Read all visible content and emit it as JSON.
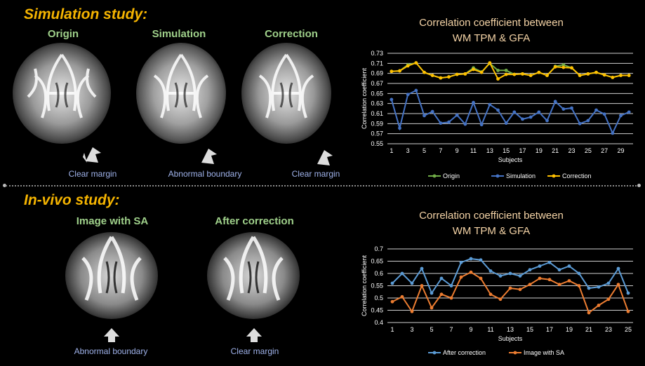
{
  "simulation": {
    "title": "Simulation study:",
    "labels": [
      "Origin",
      "Simulation",
      "Correction"
    ],
    "notes": [
      "Clear margin",
      "Abnormal boundary",
      "Clear margin"
    ]
  },
  "invivo": {
    "title": "In-vivo study:",
    "labels": [
      "Image with SA",
      "After correction"
    ],
    "notes": [
      "Abnormal boundary",
      "Clear margin"
    ]
  },
  "chart_data": [
    {
      "type": "line",
      "title": "Correlation coefficient between\nWM TPM & GFA",
      "title_lines": [
        "Correlation coefficient between",
        "WM TPM & GFA"
      ],
      "xlabel": "Subjects",
      "ylabel": "Correlation coefficient",
      "ylim": [
        0.55,
        0.73
      ],
      "yticks": [
        "0.55",
        "0.57",
        "0.59",
        "0.61",
        "0.63",
        "0.65",
        "0.67",
        "0.69",
        "0.71",
        "0.73"
      ],
      "xticks": [
        "1",
        "3",
        "5",
        "7",
        "9",
        "11",
        "13",
        "15",
        "17",
        "19",
        "21",
        "23",
        "25",
        "27",
        "29"
      ],
      "x": [
        1,
        2,
        3,
        4,
        5,
        6,
        7,
        8,
        9,
        10,
        11,
        12,
        13,
        14,
        15,
        16,
        17,
        18,
        19,
        20,
        21,
        22,
        23,
        24,
        25,
        26,
        27,
        28,
        29,
        30
      ],
      "legend": "bottom",
      "grid": true,
      "series": [
        {
          "name": "Origin",
          "color": "#70ad47",
          "values": [
            0.694,
            0.695,
            0.707,
            0.711,
            0.692,
            0.686,
            0.681,
            0.683,
            0.688,
            0.689,
            0.701,
            0.693,
            0.71,
            0.696,
            0.696,
            0.688,
            0.689,
            0.686,
            0.692,
            0.686,
            0.704,
            0.707,
            0.701,
            0.686,
            0.689,
            0.692,
            0.687,
            0.682,
            0.686,
            0.686
          ]
        },
        {
          "name": "Simulation",
          "color": "#4472c4",
          "values": [
            0.638,
            0.581,
            0.648,
            0.656,
            0.606,
            0.614,
            0.591,
            0.593,
            0.607,
            0.589,
            0.632,
            0.588,
            0.628,
            0.617,
            0.591,
            0.613,
            0.599,
            0.603,
            0.613,
            0.596,
            0.634,
            0.619,
            0.621,
            0.59,
            0.596,
            0.617,
            0.609,
            0.571,
            0.606,
            0.613
          ]
        },
        {
          "name": "Correction",
          "color": "#ffc000",
          "values": [
            0.694,
            0.695,
            0.705,
            0.711,
            0.692,
            0.686,
            0.681,
            0.683,
            0.688,
            0.689,
            0.698,
            0.692,
            0.711,
            0.679,
            0.688,
            0.688,
            0.689,
            0.686,
            0.692,
            0.686,
            0.703,
            0.702,
            0.701,
            0.686,
            0.689,
            0.692,
            0.687,
            0.682,
            0.686,
            0.686
          ]
        }
      ]
    },
    {
      "type": "line",
      "title": "Correlation coefficient between\nWM TPM & GFA",
      "title_lines": [
        "Correlation coefficient between",
        "WM TPM & GFA"
      ],
      "xlabel": "Subjects",
      "ylabel": "Correlation coefficient",
      "ylim": [
        0.4,
        0.7
      ],
      "yticks": [
        "0.4",
        "0.45",
        "0.5",
        "0.55",
        "0.6",
        "0.65",
        "0.7"
      ],
      "xticks": [
        "1",
        "3",
        "5",
        "7",
        "9",
        "11",
        "13",
        "15",
        "17",
        "19",
        "21",
        "23",
        "25"
      ],
      "x": [
        1,
        2,
        3,
        4,
        5,
        6,
        7,
        8,
        9,
        10,
        11,
        12,
        13,
        14,
        15,
        16,
        17,
        18,
        19,
        20,
        21,
        22,
        23,
        24,
        25
      ],
      "legend": "bottom",
      "grid": true,
      "series": [
        {
          "name": "After correction",
          "color": "#5b9bd5",
          "values": [
            0.56,
            0.6,
            0.56,
            0.62,
            0.52,
            0.58,
            0.55,
            0.645,
            0.66,
            0.655,
            0.61,
            0.59,
            0.6,
            0.59,
            0.615,
            0.63,
            0.645,
            0.615,
            0.63,
            0.6,
            0.54,
            0.545,
            0.56,
            0.62,
            0.52
          ]
        },
        {
          "name": "Image with SA",
          "color": "#ed7d31",
          "values": [
            0.485,
            0.505,
            0.445,
            0.55,
            0.46,
            0.515,
            0.5,
            0.585,
            0.605,
            0.58,
            0.515,
            0.495,
            0.54,
            0.535,
            0.555,
            0.58,
            0.575,
            0.555,
            0.57,
            0.55,
            0.44,
            0.47,
            0.495,
            0.555,
            0.445
          ]
        }
      ]
    }
  ]
}
